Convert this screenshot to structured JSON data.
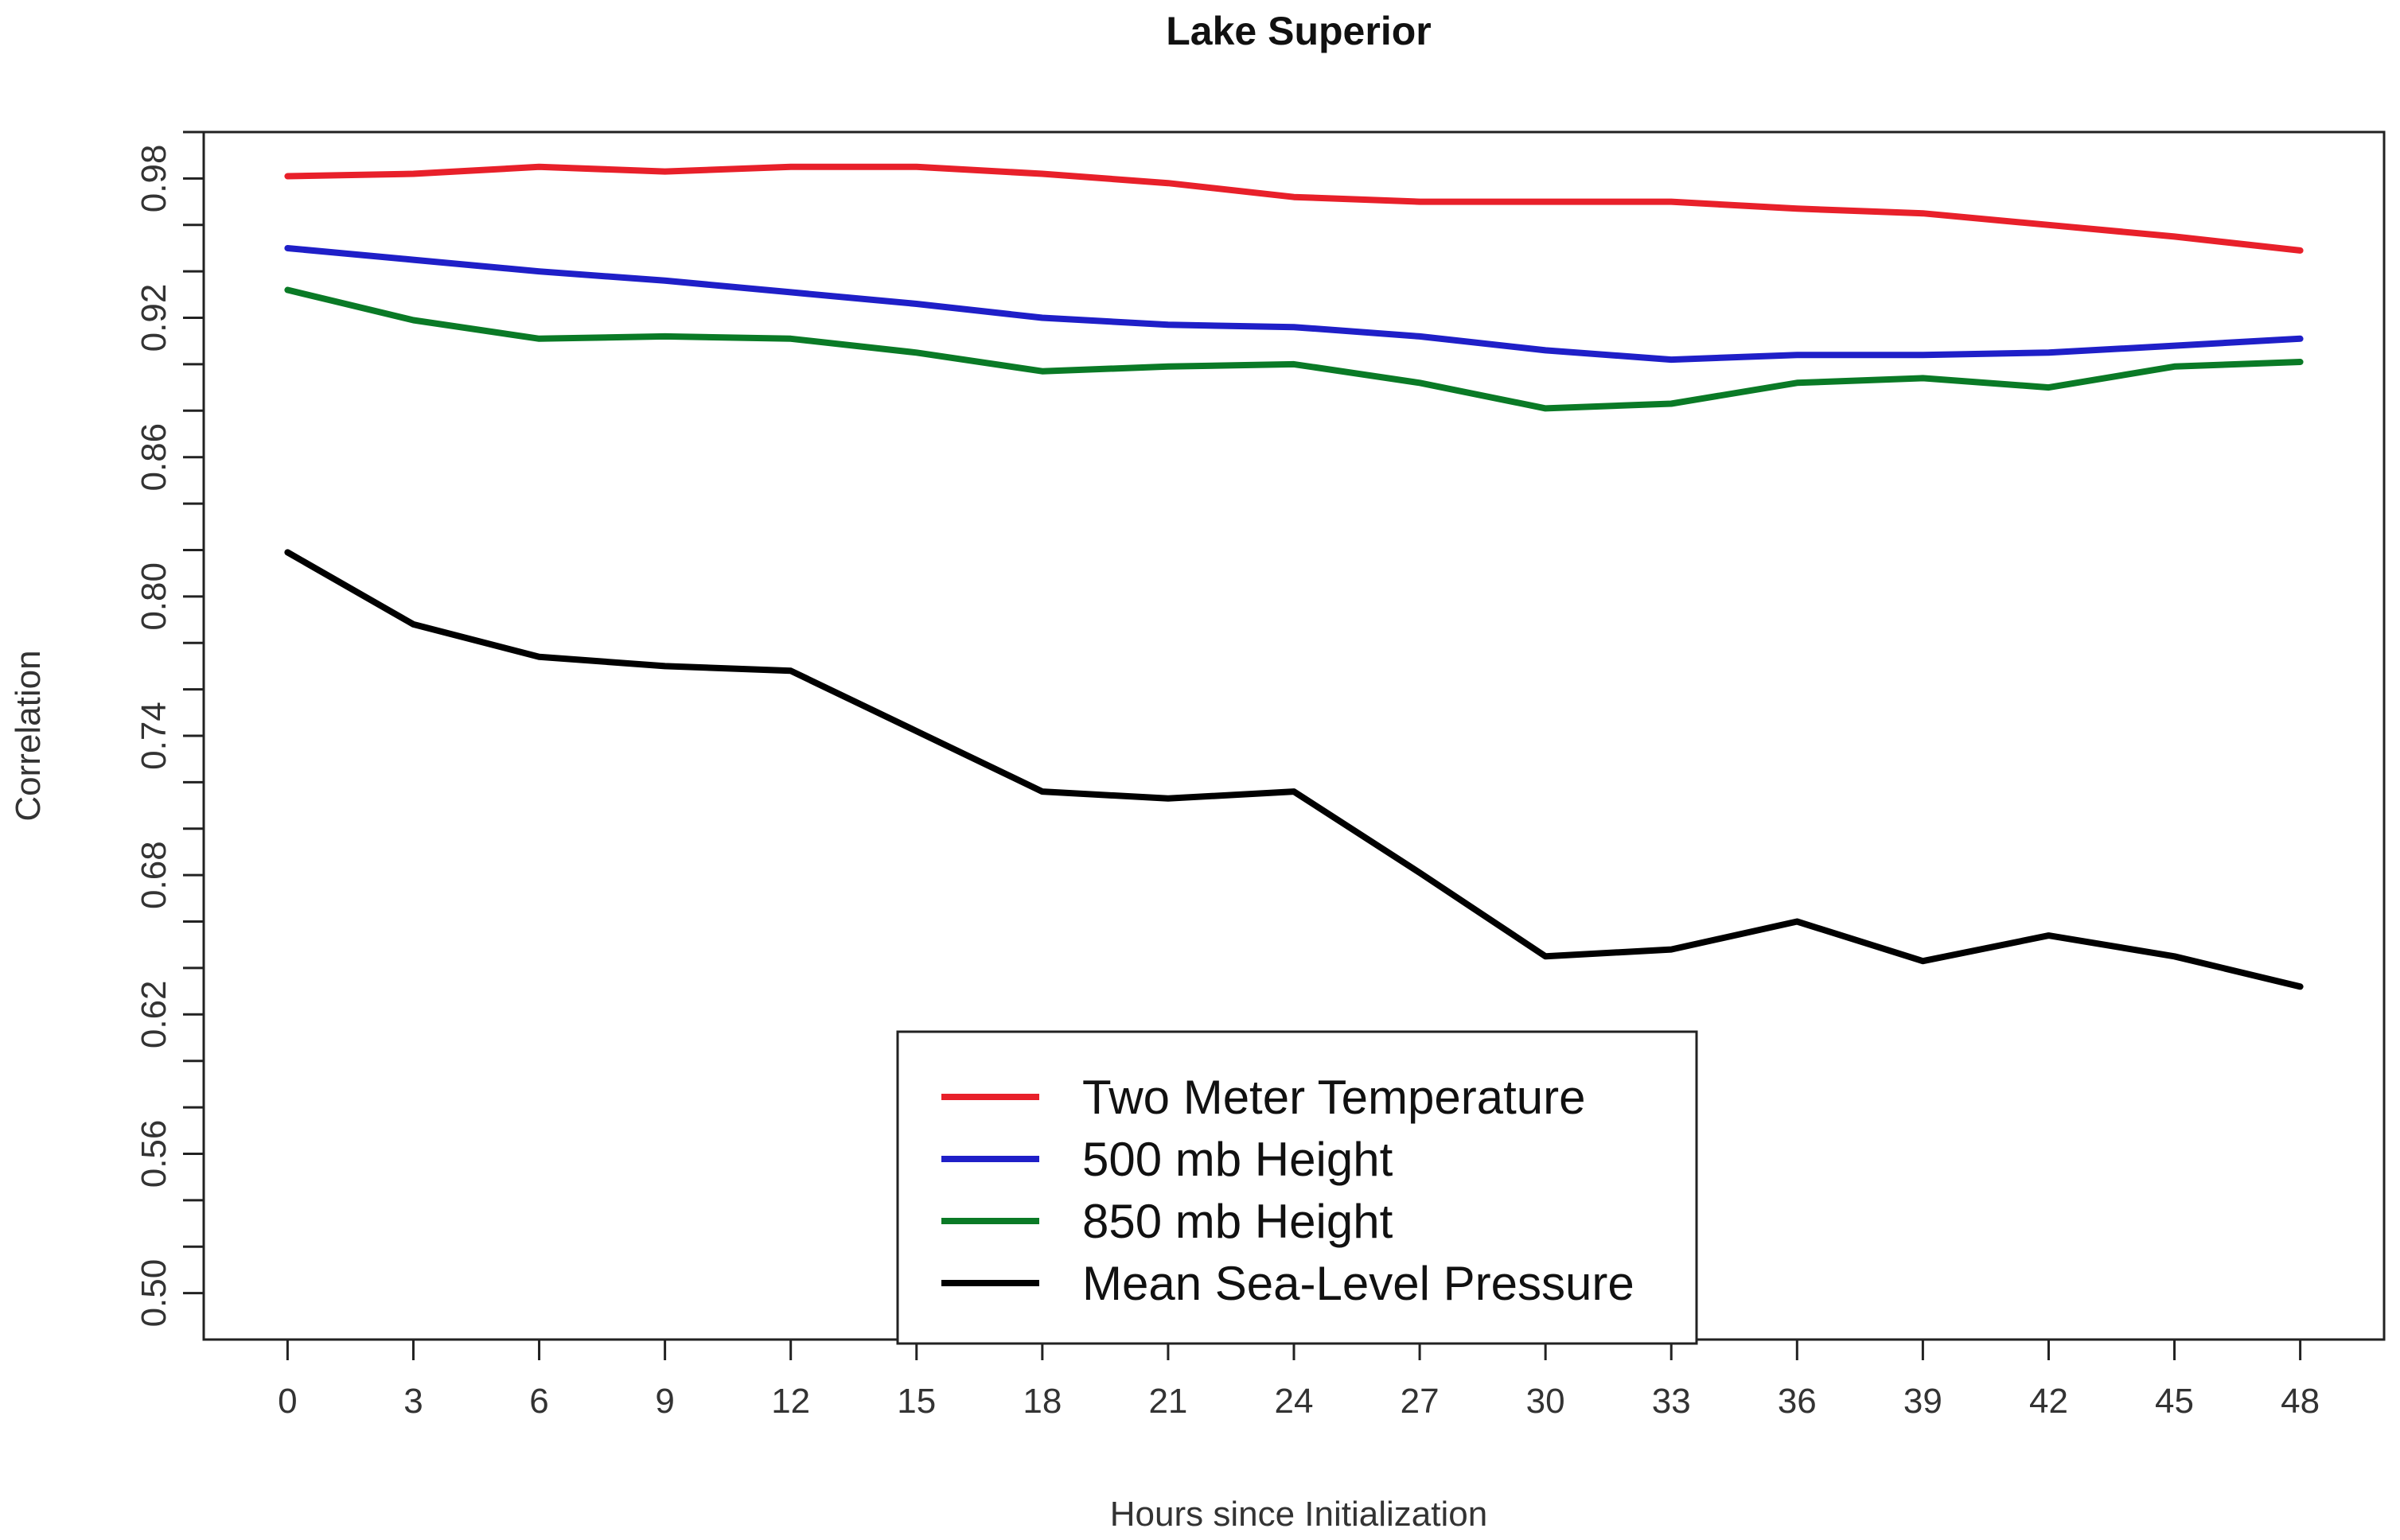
{
  "chart_data": {
    "type": "line",
    "title": "Lake Superior",
    "xlabel": "Hours since Initialization",
    "ylabel": "Correlation",
    "x": [
      0,
      3,
      6,
      9,
      12,
      15,
      18,
      21,
      24,
      27,
      30,
      33,
      36,
      39,
      42,
      45,
      48
    ],
    "xticks": [
      "0",
      "3",
      "6",
      "9",
      "12",
      "15",
      "18",
      "21",
      "24",
      "27",
      "30",
      "33",
      "36",
      "39",
      "42",
      "45",
      "48"
    ],
    "yticks": [
      "0.50",
      "0.56",
      "0.62",
      "0.68",
      "0.74",
      "0.80",
      "0.86",
      "0.92",
      "0.98"
    ],
    "ylim": [
      0.48,
      1.0
    ],
    "xlim": [
      -2,
      50
    ],
    "legend_position": "bottom-center",
    "series": [
      {
        "name": "Two Meter Temperature",
        "color": "#e8202a",
        "values": [
          0.981,
          0.982,
          0.985,
          0.983,
          0.985,
          0.985,
          0.982,
          0.978,
          0.972,
          0.97,
          0.97,
          0.97,
          0.967,
          0.965,
          0.96,
          0.955,
          0.949
        ]
      },
      {
        "name": "500 mb Height",
        "color": "#1f1fc8",
        "values": [
          0.95,
          0.945,
          0.94,
          0.936,
          0.931,
          0.926,
          0.92,
          0.917,
          0.916,
          0.912,
          0.906,
          0.902,
          0.904,
          0.904,
          0.905,
          0.908,
          0.911
        ]
      },
      {
        "name": "850 mb Height",
        "color": "#0a7a26",
        "values": [
          0.932,
          0.919,
          0.911,
          0.912,
          0.911,
          0.905,
          0.897,
          0.899,
          0.9,
          0.892,
          0.881,
          0.883,
          0.892,
          0.894,
          0.89,
          0.899,
          0.901
        ]
      },
      {
        "name": "Mean Sea-Level Pressure",
        "color": "#000000",
        "values": [
          0.819,
          0.788,
          0.774,
          0.77,
          0.768,
          0.742,
          0.716,
          0.713,
          0.716,
          0.681,
          0.645,
          0.648,
          0.66,
          0.643,
          0.654,
          0.645,
          0.632
        ]
      }
    ]
  }
}
